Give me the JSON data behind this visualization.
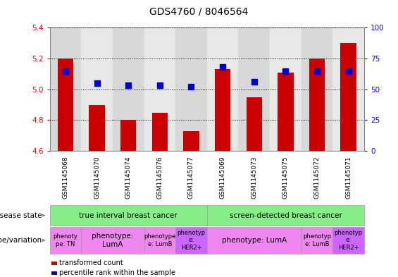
{
  "title": "GDS4760 / 8046564",
  "samples": [
    "GSM1145068",
    "GSM1145070",
    "GSM1145074",
    "GSM1145076",
    "GSM1145077",
    "GSM1145069",
    "GSM1145073",
    "GSM1145075",
    "GSM1145072",
    "GSM1145071"
  ],
  "transformed_count": [
    5.2,
    4.9,
    4.8,
    4.85,
    4.73,
    5.13,
    4.95,
    5.11,
    5.2,
    5.3
  ],
  "percentile_rank": [
    65,
    55,
    53,
    53,
    52,
    68,
    56,
    65,
    65,
    65
  ],
  "ylim_left": [
    4.6,
    5.4
  ],
  "ylim_right": [
    0,
    100
  ],
  "yticks_left": [
    4.6,
    4.8,
    5.0,
    5.2,
    5.4
  ],
  "yticks_right": [
    0,
    25,
    50,
    75,
    100
  ],
  "bar_color": "#cc0000",
  "dot_color": "#0000cc",
  "bar_width": 0.5,
  "dot_size": 35,
  "col_bg_even": "#d8d8d8",
  "col_bg_odd": "#e8e8e8",
  "disease_state_groups": [
    {
      "label": "true interval breast cancer",
      "start": 0,
      "end": 4,
      "color": "#88ee88"
    },
    {
      "label": "screen-detected breast cancer",
      "start": 5,
      "end": 9,
      "color": "#88ee88"
    }
  ],
  "genotype_groups": [
    {
      "label": "phenoty\npe: TN",
      "start": 0,
      "end": 0,
      "color": "#ee88ee"
    },
    {
      "label": "phenotype:\nLumA",
      "start": 1,
      "end": 2,
      "color": "#ee88ee"
    },
    {
      "label": "phenotype\ne: LumB",
      "start": 3,
      "end": 3,
      "color": "#ee88ee"
    },
    {
      "label": "phenotyp\ne:\nHER2+",
      "start": 4,
      "end": 4,
      "color": "#cc66ff"
    },
    {
      "label": "phenotype: LumA",
      "start": 5,
      "end": 7,
      "color": "#ee88ee"
    },
    {
      "label": "phenotyp\ne: LumB",
      "start": 8,
      "end": 8,
      "color": "#ee88ee"
    },
    {
      "label": "phenotyp\ne:\nHER2+",
      "start": 9,
      "end": 9,
      "color": "#cc66ff"
    }
  ],
  "row_label_disease": "disease state",
  "row_label_genotype": "genotype/variation",
  "legend_red": "transformed count",
  "legend_blue": "percentile rank within the sample",
  "grid_linestyle": "dotted",
  "title_fontsize": 10
}
